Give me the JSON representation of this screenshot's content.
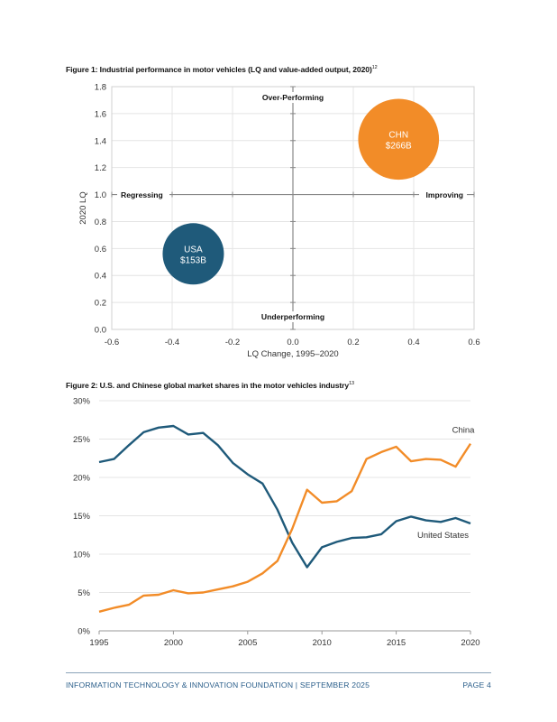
{
  "colors": {
    "usa": "#1f5a7a",
    "china": "#f28c28",
    "grid": "#e4e4e4",
    "axis": "#888888",
    "footer": "#2a5e8a"
  },
  "figure1": {
    "title": "Figure 1: Industrial performance in motor vehicles (LQ and value-added output, 2020)",
    "footnote": "12",
    "quadrants": {
      "top": "Over-Performing",
      "bottom": "Underperforming",
      "left": "Regressing",
      "right": "Improving"
    }
  },
  "figure2": {
    "title": "Figure 2: U.S. and Chinese global market shares in the motor vehicles industry",
    "footnote": "13"
  },
  "footer": {
    "left": "INFORMATION TECHNOLOGY & INNOVATION FOUNDATION  |  SEPTEMBER 2025",
    "right": "PAGE 4"
  },
  "chart_data": [
    {
      "type": "scatter",
      "title": "Figure 1: Industrial performance in motor vehicles (LQ and value-added output, 2020)",
      "xlabel": "LQ Change, 1995–2020",
      "ylabel": "2020 LQ",
      "xlim": [
        -0.6,
        0.6
      ],
      "ylim": [
        0.0,
        1.8
      ],
      "xticks": [
        -0.6,
        -0.4,
        -0.2,
        0.0,
        0.2,
        0.4,
        0.6
      ],
      "xtick_labels": [
        "-0.6",
        "-0.4",
        "-0.2",
        "0.0",
        "0.2",
        "0.4",
        "0.6"
      ],
      "yticks": [
        0.0,
        0.2,
        0.4,
        0.6,
        0.8,
        1.0,
        1.2,
        1.4,
        1.6,
        1.8
      ],
      "ytick_labels": [
        "0.0",
        "0.2",
        "0.4",
        "0.6",
        "0.8",
        "1.0",
        "1.2",
        "1.4",
        "1.6",
        "1.8"
      ],
      "grid": true,
      "points": [
        {
          "name": "USA",
          "x": -0.33,
          "y": 0.56,
          "size": 153,
          "label": "$153B",
          "color": "#1f5a7a"
        },
        {
          "name": "CHN",
          "x": 0.35,
          "y": 1.41,
          "size": 266,
          "label": "$266B",
          "color": "#f28c28"
        }
      ]
    },
    {
      "type": "line",
      "title": "Figure 2: U.S. and Chinese global market shares in the motor vehicles industry",
      "xlabel": "",
      "ylabel": "",
      "xlim": [
        1995,
        2020
      ],
      "ylim": [
        0,
        30
      ],
      "xticks": [
        1995,
        2000,
        2005,
        2010,
        2015,
        2020
      ],
      "xtick_labels": [
        "1995",
        "2000",
        "2005",
        "2010",
        "2015",
        "2020"
      ],
      "yticks": [
        0,
        5,
        10,
        15,
        20,
        25,
        30
      ],
      "ytick_labels": [
        "0%",
        "5%",
        "10%",
        "15%",
        "20%",
        "25%",
        "30%"
      ],
      "grid": true,
      "x": [
        1995,
        1996,
        1997,
        1998,
        1999,
        2000,
        2001,
        2002,
        2003,
        2004,
        2005,
        2006,
        2007,
        2008,
        2009,
        2010,
        2011,
        2012,
        2013,
        2014,
        2015,
        2016,
        2017,
        2018,
        2019,
        2020
      ],
      "series": [
        {
          "name": "United States",
          "color": "#1f5a7a",
          "values": [
            22.0,
            22.4,
            24.2,
            25.9,
            26.5,
            26.7,
            25.6,
            25.8,
            24.2,
            21.9,
            20.4,
            19.2,
            15.8,
            11.5,
            8.3,
            10.9,
            11.6,
            12.1,
            12.2,
            12.6,
            14.3,
            14.9,
            14.4,
            14.2,
            14.7,
            14.0
          ]
        },
        {
          "name": "China",
          "color": "#f28c28",
          "values": [
            2.5,
            3.0,
            3.4,
            4.6,
            4.7,
            5.3,
            4.9,
            5.0,
            5.4,
            5.8,
            6.4,
            7.5,
            9.1,
            13.3,
            18.4,
            16.7,
            16.9,
            18.2,
            22.4,
            23.3,
            24.0,
            22.1,
            22.4,
            22.3,
            21.4,
            24.4
          ]
        }
      ]
    }
  ]
}
